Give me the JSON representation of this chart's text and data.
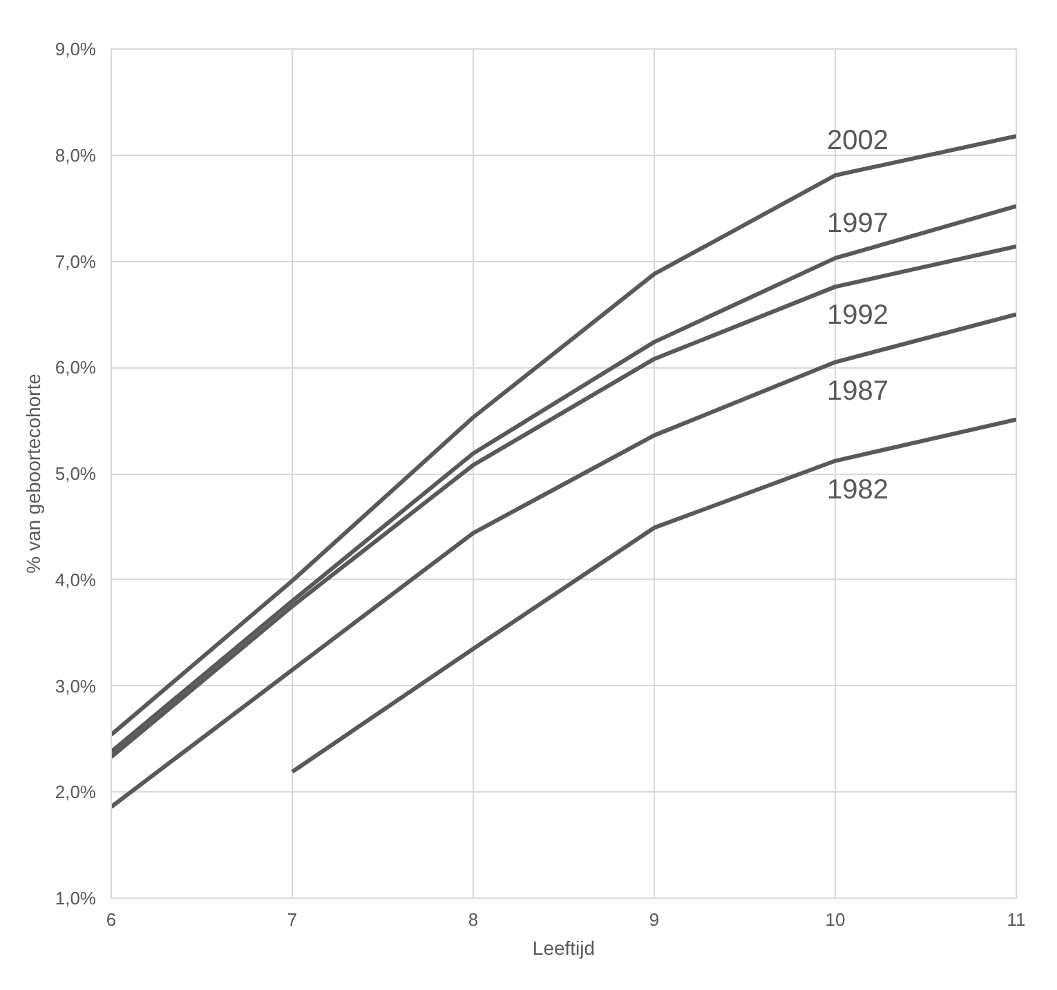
{
  "chart_data": {
    "type": "line",
    "xlabel": "Leeftijd",
    "ylabel": "% van geboortecohorte",
    "x": [
      6,
      7,
      8,
      9,
      10,
      11
    ],
    "series": [
      {
        "name": "2002",
        "color": "#595959",
        "values": [
          2.54,
          3.99,
          5.53,
          6.88,
          7.81,
          8.18
        ]
      },
      {
        "name": "1997",
        "color": "#595959",
        "values": [
          2.38,
          3.8,
          5.19,
          6.24,
          7.03,
          7.52
        ]
      },
      {
        "name": "1992",
        "color": "#595959",
        "values": [
          2.33,
          3.75,
          5.08,
          6.08,
          6.76,
          7.14
        ]
      },
      {
        "name": "1987",
        "color": "#595959",
        "values": [
          1.86,
          3.15,
          4.44,
          5.36,
          6.05,
          6.5
        ]
      },
      {
        "name": "1982",
        "color": "#595959",
        "values": [
          null,
          2.19,
          3.35,
          4.49,
          5.12,
          5.51
        ]
      }
    ],
    "xlim": [
      6,
      11
    ],
    "ylim": [
      1,
      9
    ],
    "xticks": [
      6,
      7,
      8,
      9,
      10,
      11
    ],
    "yticks": [
      {
        "value": 1,
        "label": "1,0%"
      },
      {
        "value": 2,
        "label": "2,0%"
      },
      {
        "value": 3,
        "label": "3,0%"
      },
      {
        "value": 4,
        "label": "4,0%"
      },
      {
        "value": 5,
        "label": "5,0%"
      },
      {
        "value": 6,
        "label": "6,0%"
      },
      {
        "value": 7,
        "label": "7,0%"
      },
      {
        "value": 8,
        "label": "8,0%"
      },
      {
        "value": 9,
        "label": "9,0%"
      }
    ],
    "grid": true,
    "line_style": "solid",
    "marker": "none"
  }
}
